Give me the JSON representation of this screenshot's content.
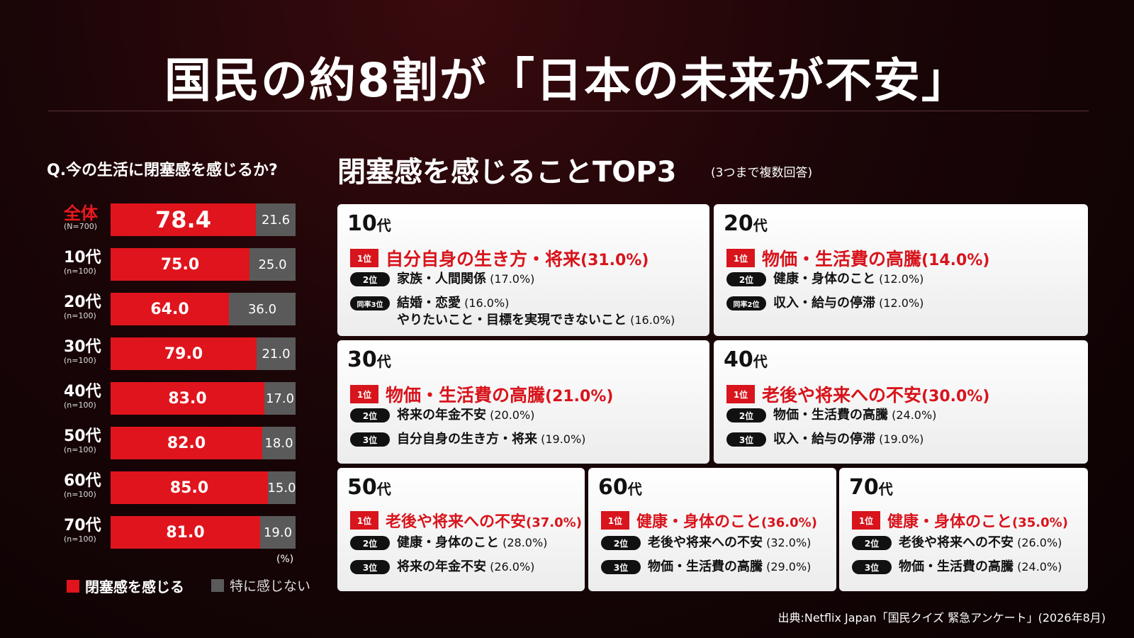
{
  "title": "国民の約8割が「日本の未来が不安」",
  "question": "Q.今の生活に閉塞感を感じるか?",
  "unit": "(%)",
  "legend": {
    "yes": "閉塞感を感じる",
    "no": "特に感じない"
  },
  "colors": {
    "yes": "#e0141c",
    "no": "#5a5a5a",
    "accent": "#d8141c"
  },
  "chart_data": {
    "type": "bar",
    "stacked": true,
    "orientation": "horizontal",
    "categories": [
      "全体",
      "10代",
      "20代",
      "30代",
      "40代",
      "50代",
      "60代",
      "70代"
    ],
    "sample_sizes": [
      "(N=700)",
      "(n=100)",
      "(n=100)",
      "(n=100)",
      "(n=100)",
      "(n=100)",
      "(n=100)",
      "(n=100)"
    ],
    "series": [
      {
        "name": "閉塞感を感じる",
        "values": [
          78.4,
          75.0,
          64.0,
          79.0,
          83.0,
          82.0,
          85.0,
          81.0
        ]
      },
      {
        "name": "特に感じない",
        "values": [
          21.6,
          25.0,
          36.0,
          21.0,
          17.0,
          18.0,
          15.0,
          19.0
        ]
      }
    ],
    "value_labels": {
      "yes": [
        "78.4",
        "75.0",
        "64.0",
        "79.0",
        "83.0",
        "82.0",
        "85.0",
        "81.0"
      ],
      "no": [
        "21.6",
        "25.0",
        "36.0",
        "21.0",
        "17.0",
        "18.0",
        "15.0",
        "19.0"
      ]
    },
    "xlim": [
      0,
      100
    ]
  },
  "top3": {
    "title": "閉塞感を感じることTOP3",
    "note": "(3つまで複数回答)",
    "groups": [
      {
        "age": "10",
        "suffix": "代",
        "items": [
          {
            "rank": "1位",
            "text": "自分自身の生き方・将来",
            "pct": "(31.0%)"
          },
          {
            "rank": "2位",
            "text": "家族・人間関係",
            "pct": "(17.0%)"
          },
          {
            "rank": "同率3位",
            "text": "結婚・恋愛",
            "pct": "(16.0%)",
            "text2": "やりたいこと・目標を実現できないこと",
            "pct2": "(16.0%)"
          }
        ]
      },
      {
        "age": "20",
        "suffix": "代",
        "items": [
          {
            "rank": "1位",
            "text": "物価・生活費の高騰",
            "pct": "(14.0%)"
          },
          {
            "rank": "2位",
            "text": "健康・身体のこと",
            "pct": "(12.0%)"
          },
          {
            "rank": "同率2位",
            "text": "収入・給与の停滞",
            "pct": "(12.0%)"
          }
        ]
      },
      {
        "age": "30",
        "suffix": "代",
        "items": [
          {
            "rank": "1位",
            "text": "物価・生活費の高騰",
            "pct": "(21.0%)"
          },
          {
            "rank": "2位",
            "text": "将来の年金不安",
            "pct": "(20.0%)"
          },
          {
            "rank": "3位",
            "text": "自分自身の生き方・将来",
            "pct": "(19.0%)"
          }
        ]
      },
      {
        "age": "40",
        "suffix": "代",
        "items": [
          {
            "rank": "1位",
            "text": "老後や将来への不安",
            "pct": "(30.0%)"
          },
          {
            "rank": "2位",
            "text": "物価・生活費の高騰",
            "pct": "(24.0%)"
          },
          {
            "rank": "3位",
            "text": "収入・給与の停滞",
            "pct": "(19.0%)"
          }
        ]
      },
      {
        "age": "50",
        "suffix": "代",
        "items": [
          {
            "rank": "1位",
            "text": "老後や将来への不安",
            "pct": "(37.0%)"
          },
          {
            "rank": "2位",
            "text": "健康・身体のこと",
            "pct": "(28.0%)"
          },
          {
            "rank": "3位",
            "text": "将来の年金不安",
            "pct": "(26.0%)"
          }
        ]
      },
      {
        "age": "60",
        "suffix": "代",
        "items": [
          {
            "rank": "1位",
            "text": "健康・身体のこと",
            "pct": "(36.0%)"
          },
          {
            "rank": "2位",
            "text": "老後や将来への不安",
            "pct": "(32.0%)"
          },
          {
            "rank": "3位",
            "text": "物価・生活費の高騰",
            "pct": "(29.0%)"
          }
        ]
      },
      {
        "age": "70",
        "suffix": "代",
        "items": [
          {
            "rank": "1位",
            "text": "健康・身体のこと",
            "pct": "(35.0%)"
          },
          {
            "rank": "2位",
            "text": "老後や将来への不安",
            "pct": "(26.0%)"
          },
          {
            "rank": "3位",
            "text": "物価・生活費の高騰",
            "pct": "(24.0%)"
          }
        ]
      }
    ]
  },
  "source": "出典:Netflix Japan「国民クイズ 緊急アンケート」(2026年8月)"
}
